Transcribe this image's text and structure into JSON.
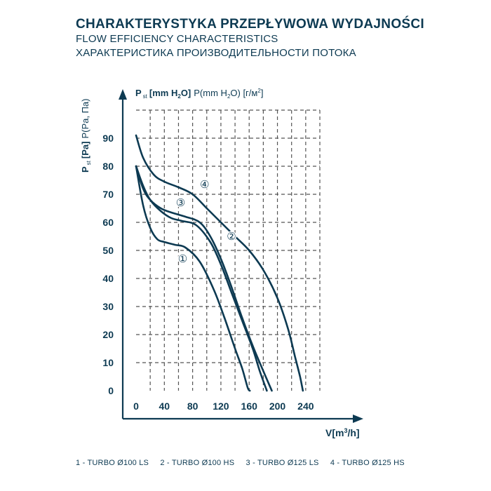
{
  "titles": {
    "pl": "CHARAKTERYSTYKA PRZEPŁYWOWA WYDAJNOŚCI",
    "en": "FLOW EFFICIENCY CHARACTERISTICS",
    "ru": "ХАРАКТЕРИСТИКА ПРОИЗВОДИТЕЛЬНОСТИ ПОТОКА"
  },
  "colors": {
    "primary": "#0d3a52",
    "grid": "#555555"
  },
  "chart_data": {
    "type": "line",
    "y_axis_title": {
      "p": "P",
      "sub": "st",
      "bold": "[mm H",
      "bold_sub": "2",
      "bold_end": "O]",
      "rest": "P(mm H",
      "rest_sub": "2",
      "rest_end": "O) [г/м",
      "rest_sup": "2",
      "rest_close": "]"
    },
    "y_side_label": {
      "p": "P",
      "sub": "st",
      "bold": "[Pa]",
      "rest": "P(Pa, Па)"
    },
    "x_label": {
      "main": "V[m",
      "sup": "3",
      "end": "/h]"
    },
    "xlim": [
      0,
      260
    ],
    "ylim": [
      0,
      100
    ],
    "x_ticks": [
      0,
      40,
      80,
      120,
      160,
      200,
      240
    ],
    "y_ticks": [
      0,
      10,
      20,
      30,
      40,
      50,
      60,
      70,
      80,
      90
    ],
    "grid": "dashed",
    "series": [
      {
        "name": "1",
        "marker": "①",
        "label_at": [
          66,
          47
        ],
        "points": [
          [
            0,
            80
          ],
          [
            10,
            66
          ],
          [
            20,
            58
          ],
          [
            30,
            54
          ],
          [
            40,
            53
          ],
          [
            55,
            52
          ],
          [
            70,
            51
          ],
          [
            90,
            46
          ],
          [
            110,
            36
          ],
          [
            125,
            26
          ],
          [
            140,
            15
          ],
          [
            150,
            8
          ],
          [
            158,
            1
          ],
          [
            161,
            0
          ]
        ]
      },
      {
        "name": "2",
        "marker": "②",
        "label_at": [
          135,
          55
        ],
        "points": [
          [
            0,
            80
          ],
          [
            10,
            73
          ],
          [
            20,
            68
          ],
          [
            35,
            64
          ],
          [
            50,
            61.5
          ],
          [
            65,
            60.5
          ],
          [
            85,
            59
          ],
          [
            105,
            53
          ],
          [
            120,
            45
          ],
          [
            135,
            35
          ],
          [
            150,
            25
          ],
          [
            165,
            15
          ],
          [
            175,
            7
          ],
          [
            185,
            0
          ]
        ]
      },
      {
        "name": "3",
        "marker": "③",
        "label_at": [
          63,
          67
        ],
        "points": [
          [
            0,
            80
          ],
          [
            10,
            72
          ],
          [
            20,
            68
          ],
          [
            35,
            65
          ],
          [
            50,
            63.5
          ],
          [
            70,
            62
          ],
          [
            90,
            60
          ],
          [
            105,
            55
          ],
          [
            120,
            47
          ],
          [
            135,
            37
          ],
          [
            150,
            26
          ],
          [
            165,
            16
          ],
          [
            180,
            7
          ],
          [
            192,
            0
          ]
        ]
      },
      {
        "name": "4",
        "marker": "④",
        "label_at": [
          97,
          73.5
        ],
        "points": [
          [
            0,
            91
          ],
          [
            10,
            83
          ],
          [
            25,
            77
          ],
          [
            40,
            74.5
          ],
          [
            60,
            72.5
          ],
          [
            80,
            70
          ],
          [
            100,
            65
          ],
          [
            120,
            60
          ],
          [
            140,
            55
          ],
          [
            160,
            50
          ],
          [
            180,
            43
          ],
          [
            200,
            33
          ],
          [
            215,
            22
          ],
          [
            225,
            12
          ],
          [
            232,
            5
          ],
          [
            236,
            0
          ]
        ]
      }
    ]
  },
  "legend": [
    "1 - TURBO Ø100 LS",
    "2 - TURBO Ø100 HS",
    "3 - TURBO Ø125 LS",
    "4 - TURBO Ø125 HS"
  ]
}
